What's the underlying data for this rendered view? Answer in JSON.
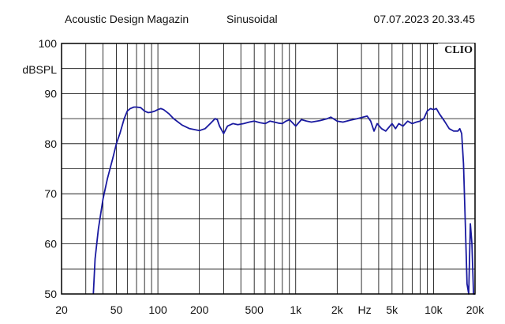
{
  "header": {
    "title": "Acoustic Design Magazin",
    "mode": "Sinusoidal",
    "datetime": "07.07.2023 20.33.45"
  },
  "brand": "CLIO",
  "colors": {
    "trace": "#1a1aa0",
    "grid": "#000000",
    "background": "#ffffff"
  },
  "chart_data": {
    "type": "line",
    "ylabel": "dBSPL",
    "xlabel": "Hz",
    "xscale": "log",
    "xlim": [
      20,
      20000
    ],
    "ylim": [
      50,
      100
    ],
    "grid": true,
    "x_ticks": [
      {
        "value": 20,
        "label": "20"
      },
      {
        "value": 50,
        "label": "50"
      },
      {
        "value": 100,
        "label": "100"
      },
      {
        "value": 200,
        "label": "200"
      },
      {
        "value": 500,
        "label": "500"
      },
      {
        "value": 1000,
        "label": "1k"
      },
      {
        "value": 2000,
        "label": "2k"
      },
      {
        "value": 5000,
        "label": "5k"
      },
      {
        "value": 10000,
        "label": "10k"
      },
      {
        "value": 20000,
        "label": "20k"
      }
    ],
    "y_ticks": [
      {
        "value": 50,
        "label": "50"
      },
      {
        "value": 60,
        "label": "60"
      },
      {
        "value": 70,
        "label": "70"
      },
      {
        "value": 80,
        "label": "80"
      },
      {
        "value": 90,
        "label": "90"
      },
      {
        "value": 100,
        "label": "100"
      }
    ],
    "series": [
      {
        "x": [
          34,
          35,
          37,
          40,
          43,
          47,
          50,
          53,
          57,
          60,
          63,
          67,
          70,
          75,
          80,
          85,
          90,
          95,
          100,
          105,
          110,
          120,
          130,
          150,
          170,
          200,
          220,
          240,
          260,
          270,
          280,
          300,
          320,
          350,
          380,
          420,
          460,
          500,
          550,
          600,
          650,
          700,
          750,
          800,
          850,
          900,
          1000,
          1100,
          1200,
          1300,
          1500,
          1700,
          1800,
          2000,
          2200,
          2500,
          2800,
          3000,
          3300,
          3500,
          3700,
          3900,
          4200,
          4500,
          5000,
          5300,
          5600,
          6000,
          6500,
          7000,
          7500,
          8000,
          8500,
          9000,
          9500,
          10000,
          10500,
          11000,
          12000,
          13000,
          14000,
          15000,
          15500,
          16000,
          16500,
          17000,
          17500,
          18000,
          18500,
          19000,
          19500,
          20000
        ],
        "y": [
          50,
          57,
          63,
          69,
          73,
          77,
          80,
          82,
          85,
          86.5,
          87,
          87.3,
          87.3,
          87.2,
          86.5,
          86.2,
          86.3,
          86.5,
          86.8,
          87,
          86.8,
          86,
          85,
          83.7,
          83,
          82.6,
          83,
          84,
          85,
          84.8,
          83.5,
          82,
          83.5,
          84,
          83.8,
          84,
          84.3,
          84.5,
          84.2,
          84,
          84.5,
          84.3,
          84.1,
          84,
          84.5,
          84.8,
          83.5,
          84.8,
          84.5,
          84.3,
          84.6,
          85,
          85.3,
          84.5,
          84.3,
          84.7,
          85,
          85.2,
          85.5,
          84.5,
          82.5,
          84,
          83,
          82.5,
          84,
          83,
          84,
          83.5,
          84.5,
          84,
          84.3,
          84.5,
          85,
          86.5,
          87,
          86.8,
          87,
          86,
          84.5,
          83,
          82.5,
          82.5,
          83,
          82,
          76,
          64,
          52,
          50,
          64,
          60,
          50,
          50
        ]
      }
    ]
  }
}
